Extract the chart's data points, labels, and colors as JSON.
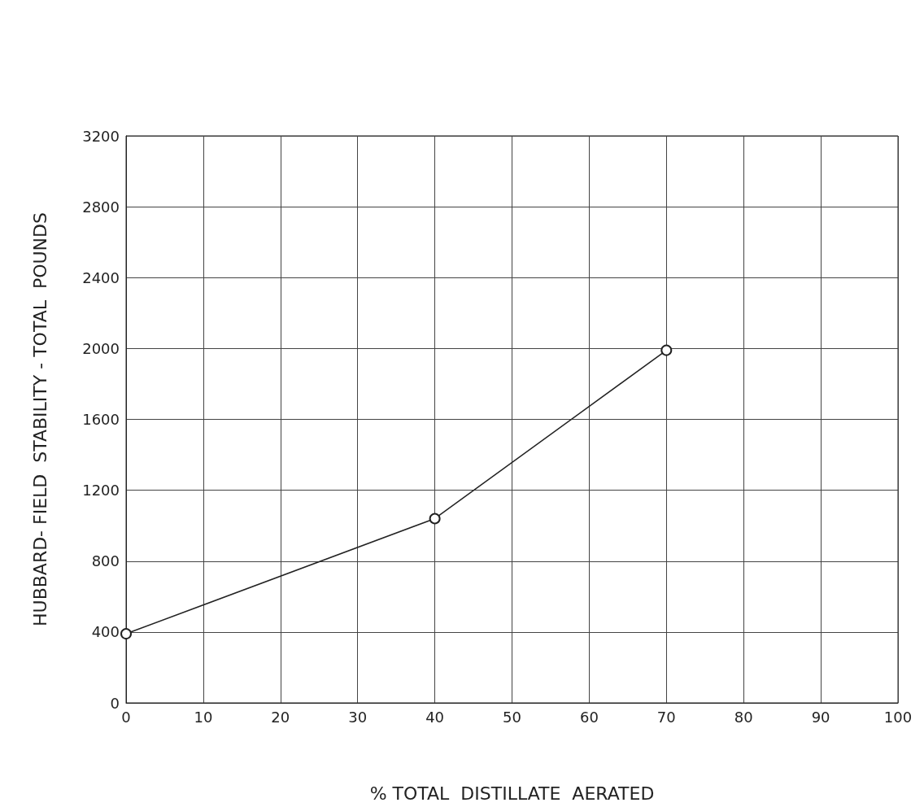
{
  "chart_data": {
    "type": "line",
    "xlabel": "% TOTAL  DISTILLATE  AERATED",
    "ylabel": "HUBBARD- FIELD  STABILITY - TOTAL  POUNDS",
    "x": [
      0,
      40,
      70
    ],
    "series": [
      {
        "color": "#222222",
        "values": [
          390,
          1040,
          1990
        ]
      }
    ],
    "xlim": [
      0,
      100
    ],
    "xticks": [
      0,
      10,
      20,
      30,
      40,
      50,
      60,
      70,
      80,
      90,
      100
    ],
    "ylim": [
      0,
      3200
    ],
    "yticks": [
      0,
      400,
      800,
      1200,
      1600,
      2000,
      2400,
      2800,
      3200
    ],
    "grid": true,
    "marker": "circle",
    "line_style": "solid"
  }
}
